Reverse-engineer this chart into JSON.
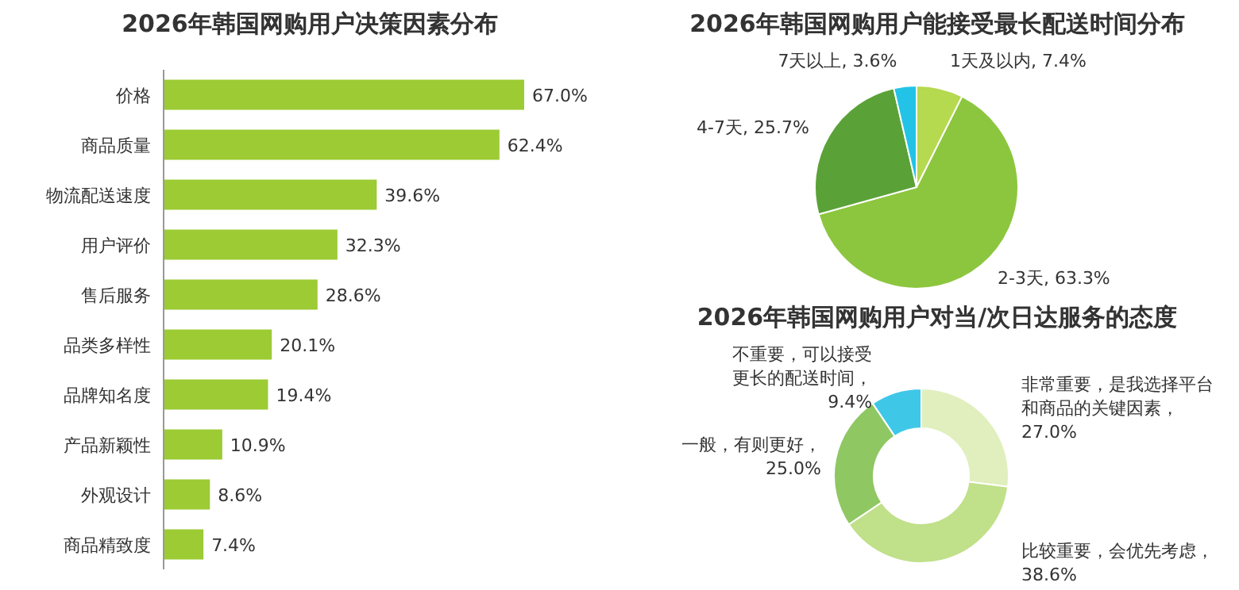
{
  "chart_data": [
    {
      "type": "bar",
      "orientation": "horizontal",
      "title": "2026年韩国网购用户决策因素分布",
      "color": "#9ccb34",
      "categories": [
        "价格",
        "商品质量",
        "物流配送速度",
        "用户评价",
        "售后服务",
        "品类多样性",
        "品牌知名度",
        "产品新颖性",
        "外观设计",
        "商品精致度"
      ],
      "values": [
        67.0,
        62.4,
        39.6,
        32.3,
        28.6,
        20.1,
        19.4,
        10.9,
        8.6,
        7.4
      ],
      "value_labels": [
        "67.0%",
        "62.4%",
        "39.6%",
        "32.3%",
        "28.6%",
        "20.1%",
        "19.4%",
        "10.9%",
        "8.6%",
        "7.4%"
      ]
    },
    {
      "type": "pie",
      "title": "2026年韩国网购用户能接受最长配送时间分布",
      "categories": [
        "1天及以内",
        "2-3天",
        "4-7天",
        "7天以上"
      ],
      "values": [
        7.4,
        63.3,
        25.7,
        3.6
      ],
      "value_labels": [
        "7.4%",
        "63.3%",
        "25.7%",
        "3.6%"
      ],
      "colors": [
        "#b5d94f",
        "#8cc63e",
        "#5aa238",
        "#22c3e6"
      ]
    },
    {
      "type": "donut",
      "title": "2026年韩国网购用户对当/次日达服务的态度",
      "categories": [
        "非常重要，是我选择平台和商品的关键因素",
        "比较重要，会优先考虑",
        "一般，有则更好",
        "不重要，可以接受更长的配送时间"
      ],
      "values": [
        27.0,
        38.6,
        25.0,
        9.4
      ],
      "value_labels": [
        "，27.0%",
        "，38.6%",
        "，25.0%",
        "，9.4%"
      ],
      "colors": [
        "#e0efbd",
        "#c0e08a",
        "#8fc763",
        "#3fc7e8"
      ]
    }
  ]
}
